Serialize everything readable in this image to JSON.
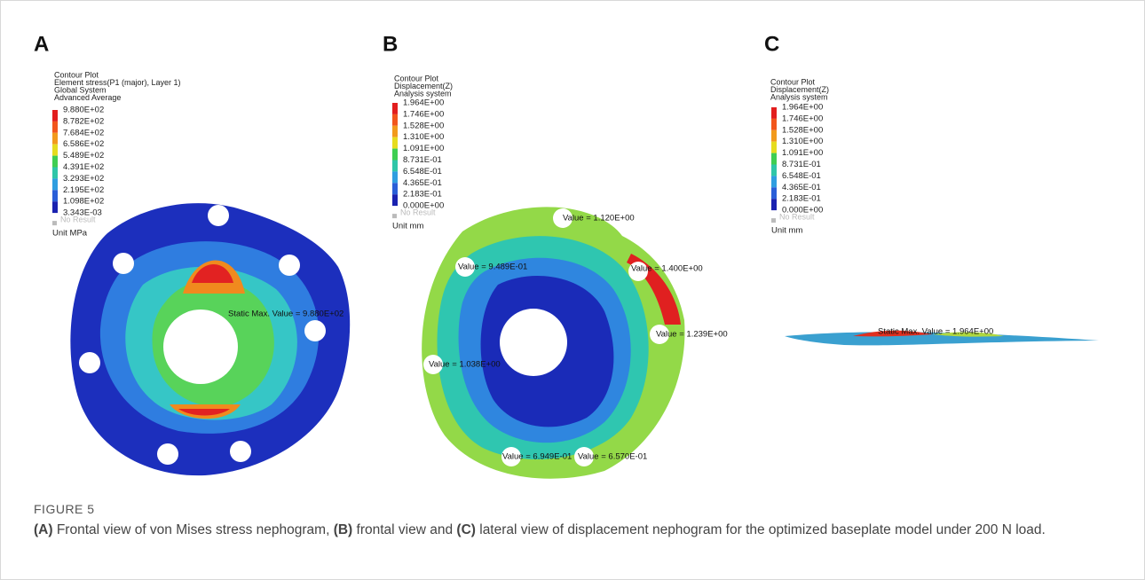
{
  "panels": [
    {
      "label": "A",
      "legend": {
        "title_lines": [
          "Contour Plot",
          "Element stress(P1 (major), Layer 1)",
          "Global System",
          "Advanced Average"
        ],
        "values": [
          "9.880E+02",
          "8.782E+02",
          "7.684E+02",
          "6.586E+02",
          "5.489E+02",
          "4.391E+02",
          "3.293E+02",
          "2.195E+02",
          "1.098E+02",
          "3.343E-03"
        ],
        "no_result": "No Result",
        "unit": "Unit MPa"
      },
      "annotations": [
        "Static Max. Value = 9.880E+02"
      ]
    },
    {
      "label": "B",
      "legend": {
        "title_lines": [
          "Contour Plot",
          "Displacement(Z)",
          "Analysis system"
        ],
        "values": [
          "1.964E+00",
          "1.746E+00",
          "1.528E+00",
          "1.310E+00",
          "1.091E+00",
          "8.731E-01",
          "6.548E-01",
          "4.365E-01",
          "2.183E-01",
          "0.000E+00"
        ],
        "no_result": "No Result",
        "unit": "Unit mm"
      },
      "annotations": [
        "Value = 1.120E+00",
        "Value = 9.489E-01",
        "Value = 1.400E+00",
        "Value = 1.239E+00",
        "Value = 1.038E+00",
        "Value = 6.949E-01",
        "Value = 6.570E-01"
      ]
    },
    {
      "label": "C",
      "legend": {
        "title_lines": [
          "Contour Plot",
          "Displacement(Z)",
          "Analysis system"
        ],
        "values": [
          "1.964E+00",
          "1.746E+00",
          "1.528E+00",
          "1.310E+00",
          "1.091E+00",
          "8.731E-01",
          "6.548E-01",
          "4.365E-01",
          "2.183E-01",
          "0.000E+00"
        ],
        "no_result": "No Result",
        "unit": "Unit mm"
      },
      "annotations": [
        "Static Max. Value = 1.964E+00"
      ]
    }
  ],
  "caption": {
    "label": "FIGURE 5",
    "segments": [
      "(A)",
      " Frontal view of von Mises stress nephogram, ",
      "(B)",
      " frontal view and ",
      "(C)",
      " lateral view of displacement nephogram for the optimized baseplate model under 200 N load."
    ]
  }
}
